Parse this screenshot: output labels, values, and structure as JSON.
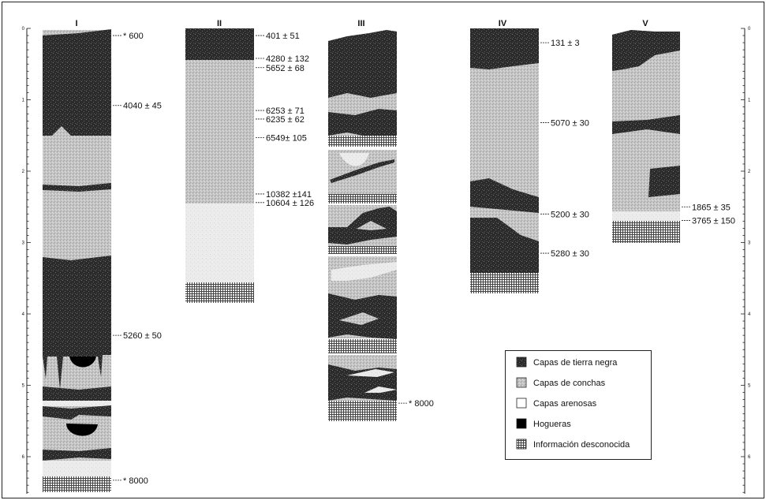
{
  "columns": [
    {
      "id": "I",
      "label": "I",
      "dates": [
        {
          "text": "* 600",
          "depth": 0.1
        },
        {
          "text": "4040 ± 45",
          "depth": 1.08
        },
        {
          "text": "5260 ± 50",
          "depth": 4.3
        },
        {
          "text": "* 8000",
          "depth": 6.33
        }
      ]
    },
    {
      "id": "II",
      "label": "II",
      "dates": [
        {
          "text": "401 ± 51",
          "depth": 0.1
        },
        {
          "text": "4280 ± 132",
          "depth": 0.42
        },
        {
          "text": "5652 ± 68",
          "depth": 0.55
        },
        {
          "text": "6253 ± 71",
          "depth": 1.15
        },
        {
          "text": "6235 ± 62",
          "depth": 1.27
        },
        {
          "text": "6549± 105",
          "depth": 1.53
        },
        {
          "text": "10382 ±141",
          "depth": 2.32
        },
        {
          "text": "10604 ± 126",
          "depth": 2.44
        }
      ]
    },
    {
      "id": "III",
      "label": "III",
      "dates": [
        {
          "text": "* 8000",
          "depth": 5.25
        }
      ]
    },
    {
      "id": "IV",
      "label": "IV",
      "dates": [
        {
          "text": "131 ± 3",
          "depth": 0.2
        },
        {
          "text": "5070 ± 30",
          "depth": 1.32
        },
        {
          "text": "5200 ± 30",
          "depth": 2.6
        },
        {
          "text": "5280 ± 30",
          "depth": 3.15
        }
      ]
    },
    {
      "id": "V",
      "label": "V",
      "dates": [
        {
          "text": "1865 ± 35",
          "depth": 2.5
        },
        {
          "text": "3765 ± 150",
          "depth": 2.69
        }
      ]
    }
  ],
  "scale": {
    "ticks": [
      "0",
      "1",
      "2",
      "3",
      "4",
      "5",
      "6"
    ]
  },
  "legend": {
    "items": [
      {
        "key": "tierra_negra",
        "label": "Capas de tierra negra"
      },
      {
        "key": "conchas",
        "label": "Capas de conchas"
      },
      {
        "key": "arenosas",
        "label": "Capas arenosas"
      },
      {
        "key": "hogueras",
        "label": "Hogueras"
      },
      {
        "key": "desconocida",
        "label": "Información desconocida"
      }
    ]
  }
}
